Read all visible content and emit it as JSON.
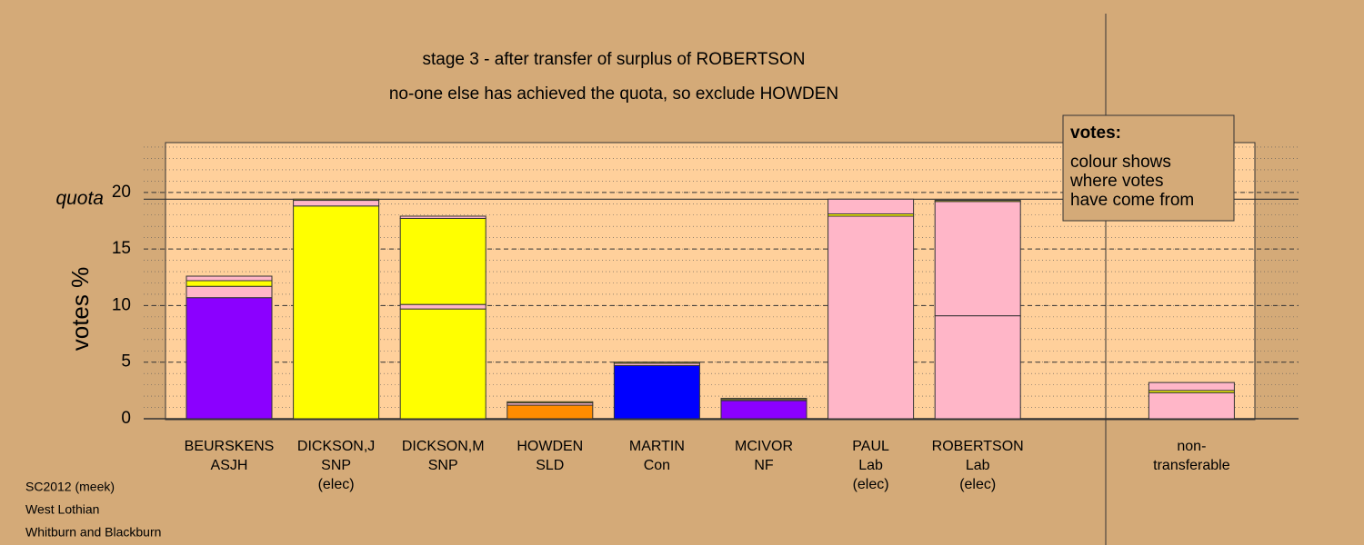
{
  "chart_data": {
    "type": "stacked-bar",
    "title": "stage 3 - after transfer of surplus of ROBERTSON",
    "subtitle": "no-one else has achieved the quota, so exclude HOWDEN",
    "y_label": "votes %",
    "quota": 19.4,
    "quota_label": "quota",
    "categories": [
      [
        "BEURSKENS",
        "ASJH"
      ],
      [
        "DICKSON,J",
        "SNP",
        "(elec)"
      ],
      [
        "DICKSON,M",
        "SNP"
      ],
      [
        "HOWDEN",
        "SLD"
      ],
      [
        "MARTIN",
        "Con"
      ],
      [
        "MCIVOR",
        "NF"
      ],
      [
        "PAUL",
        "Lab",
        "(elec)"
      ],
      [
        "ROBERTSON",
        "Lab",
        "(elec)"
      ],
      null,
      [
        "non-",
        "transferable"
      ]
    ],
    "series": [
      {
        "colors": [
          "#8b00ff",
          "#ffff00",
          "#ffff00",
          "#ff8c00",
          "#0000ff",
          "#8b00ff",
          "#ffb6c8",
          "#ffb6c8",
          null,
          "#ffb6c8"
        ],
        "values": [
          10.7,
          18.8,
          9.7,
          1.2,
          4.7,
          1.6,
          17.9,
          9.1,
          null,
          2.3
        ]
      },
      {
        "colors": [
          "#ffb6c8",
          "#ffb6c8",
          "#ffb6c8",
          "#ffb6c8",
          "#ffb6c8",
          "#ffb6c8",
          "#ffff00",
          "#ffb6c8",
          null,
          "#ffff00"
        ],
        "values": [
          1.0,
          0.5,
          0.4,
          0.2,
          0.2,
          0.1,
          0.2,
          10.1,
          null,
          0.2
        ]
      },
      {
        "colors": [
          "#ffff00",
          "#ffff00",
          "#ffff00",
          "#ffff00",
          "#ffff00",
          "#ffff00",
          "#ffb6c8",
          "#ffff00",
          null,
          "#ffb6c8"
        ],
        "values": [
          0.5,
          0.1,
          7.6,
          0.1,
          0.1,
          0.1,
          1.3,
          0.1,
          null,
          0.7
        ]
      },
      {
        "colors": [
          "#ffb6c8",
          null,
          "#ffb6c8",
          null,
          null,
          null,
          null,
          null,
          null,
          null
        ],
        "values": [
          0.4,
          null,
          0.2,
          null,
          null,
          null,
          null,
          null,
          null,
          null
        ]
      }
    ],
    "ylim": [
      0,
      24.4
    ],
    "yticks": [
      0,
      5,
      10,
      15,
      20
    ],
    "minor_grid_step": 1,
    "grid": true,
    "legend": {
      "title": "votes:",
      "lines": [
        "colour shows",
        "where votes",
        "have come from"
      ]
    },
    "footer": [
      "SC2012 (meek)",
      "West Lothian",
      "Whitburn and Blackburn"
    ]
  }
}
